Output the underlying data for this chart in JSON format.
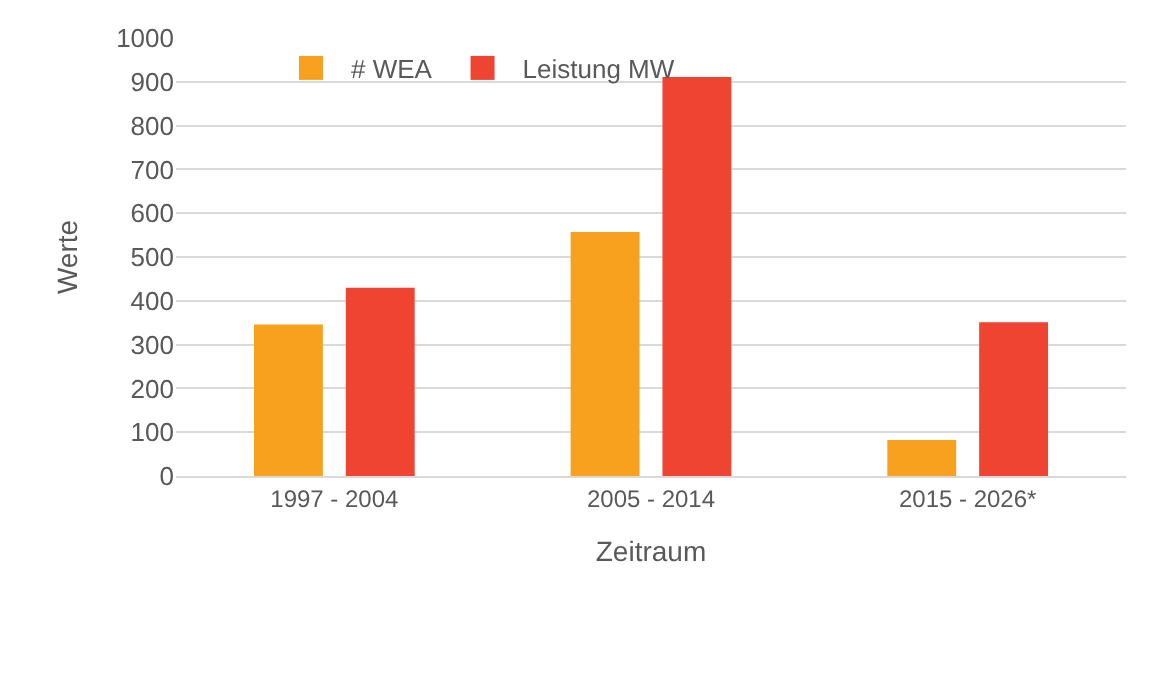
{
  "chart_data": {
    "type": "bar",
    "xlabel": "Zeitraum",
    "ylabel": "Werte",
    "categories": [
      "1997 - 2004",
      "2005 - 2014",
      "2015 - 2026*"
    ],
    "series": [
      {
        "name": "# WEA",
        "color": "#f7a11e",
        "values": [
          346,
          557,
          82
        ]
      },
      {
        "name": "Leistung MW",
        "color": "#ef4432",
        "values": [
          430,
          911,
          351
        ]
      }
    ],
    "ylim": [
      0,
      1000
    ],
    "yticks": [
      0,
      100,
      200,
      300,
      400,
      500,
      600,
      700,
      800,
      900,
      1000
    ],
    "grid": "y",
    "legend": "top left"
  }
}
